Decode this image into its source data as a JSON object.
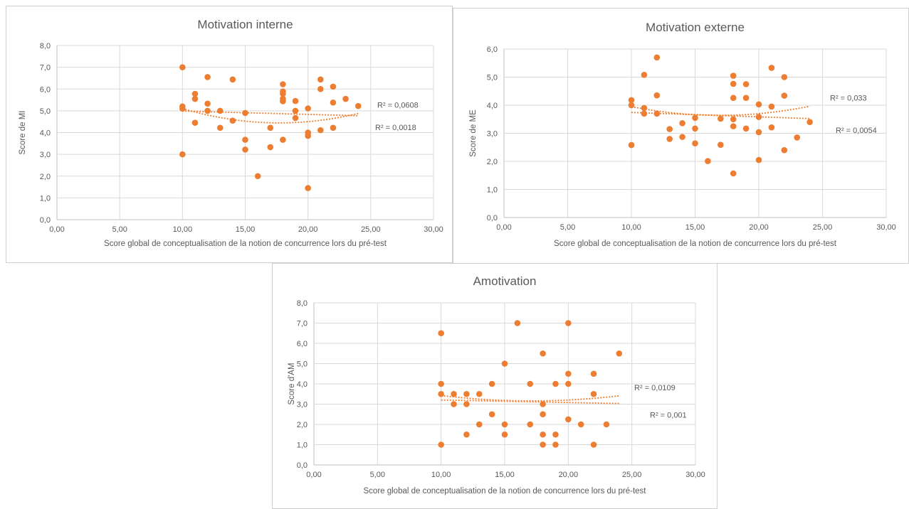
{
  "colors": {
    "point": "#ED7D31",
    "trend": "#ED7D31",
    "grid": "#d9d9d9",
    "axis": "#bfbfbf",
    "text": "#595959"
  },
  "chart_data": [
    {
      "type": "scatter",
      "title": "Motivation interne",
      "xlabel": "Score  global de conceptualisation de la notion de concurrence lors du pré-test",
      "ylabel": "Score de MI",
      "xlim": [
        0,
        30
      ],
      "ylim": [
        0,
        8
      ],
      "xticks": [
        "0,00",
        "5,00",
        "10,00",
        "15,00",
        "20,00",
        "25,00",
        "30,00"
      ],
      "yticks": [
        "0,0",
        "1,0",
        "2,0",
        "3,0",
        "4,0",
        "5,0",
        "6,0",
        "7,0",
        "8,0"
      ],
      "grid": true,
      "points": [
        [
          10,
          7.0
        ],
        [
          10,
          5.2
        ],
        [
          10,
          5.1
        ],
        [
          10,
          3.0
        ],
        [
          11,
          5.78
        ],
        [
          11,
          5.55
        ],
        [
          11,
          4.45
        ],
        [
          12,
          6.55
        ],
        [
          12,
          5.33
        ],
        [
          12,
          5.0
        ],
        [
          13,
          5.0
        ],
        [
          13,
          4.22
        ],
        [
          14,
          6.44
        ],
        [
          14,
          4.55
        ],
        [
          15,
          4.9
        ],
        [
          15,
          3.67
        ],
        [
          15,
          3.22
        ],
        [
          16,
          2.0
        ],
        [
          17,
          4.22
        ],
        [
          17,
          3.33
        ],
        [
          18,
          6.22
        ],
        [
          18,
          5.89
        ],
        [
          18,
          5.78
        ],
        [
          18,
          5.55
        ],
        [
          18,
          5.44
        ],
        [
          18,
          3.67
        ],
        [
          19,
          5.45
        ],
        [
          19,
          5.0
        ],
        [
          19,
          4.67
        ],
        [
          20,
          5.11
        ],
        [
          20,
          4.0
        ],
        [
          20,
          3.85
        ],
        [
          20,
          1.45
        ],
        [
          21,
          6.44
        ],
        [
          21,
          6.0
        ],
        [
          21,
          4.11
        ],
        [
          22,
          6.11
        ],
        [
          22,
          5.38
        ],
        [
          22,
          4.22
        ],
        [
          23,
          5.55
        ],
        [
          24,
          5.22
        ]
      ],
      "trendlines": [
        {
          "kind": "polynomial",
          "label": "R² = 0,0608",
          "xrange": [
            10,
            24
          ],
          "coefficients": [
            7.91,
            -0.391,
            0.01103
          ]
        },
        {
          "kind": "linear",
          "label": "R² = 0,0018",
          "xrange": [
            10,
            24
          ],
          "coefficients": [
            5.14,
            -0.0152
          ]
        }
      ]
    },
    {
      "type": "scatter",
      "title": "Motivation externe",
      "xlabel": "Score  global de conceptualisation de la notion de concurrence lors du pré-test",
      "ylabel": "Score de ME",
      "xlim": [
        0,
        30
      ],
      "ylim": [
        0,
        6
      ],
      "xticks": [
        "0,00",
        "5,00",
        "10,00",
        "15,00",
        "20,00",
        "25,00",
        "30,00"
      ],
      "yticks": [
        "0,0",
        "1,0",
        "2,0",
        "3,0",
        "4,0",
        "5,0",
        "6,0"
      ],
      "grid": true,
      "points": [
        [
          10,
          4.18
        ],
        [
          10,
          4.0
        ],
        [
          10,
          2.58
        ],
        [
          11,
          5.08
        ],
        [
          11,
          3.9
        ],
        [
          11,
          3.7
        ],
        [
          12,
          5.7
        ],
        [
          12,
          4.35
        ],
        [
          12,
          3.7
        ],
        [
          13,
          3.15
        ],
        [
          13,
          2.8
        ],
        [
          14,
          3.36
        ],
        [
          14,
          2.87
        ],
        [
          15,
          3.55
        ],
        [
          15,
          3.17
        ],
        [
          15,
          2.64
        ],
        [
          16,
          2.01
        ],
        [
          17,
          3.52
        ],
        [
          17,
          2.59
        ],
        [
          18,
          5.05
        ],
        [
          18,
          4.76
        ],
        [
          18,
          4.26
        ],
        [
          18,
          3.5
        ],
        [
          18,
          3.25
        ],
        [
          18,
          1.57
        ],
        [
          19,
          4.75
        ],
        [
          19,
          4.26
        ],
        [
          19,
          3.17
        ],
        [
          20,
          4.03
        ],
        [
          20,
          3.58
        ],
        [
          20,
          3.04
        ],
        [
          20,
          2.05
        ],
        [
          21,
          5.33
        ],
        [
          21,
          3.95
        ],
        [
          21,
          3.21
        ],
        [
          22,
          5.0
        ],
        [
          22,
          4.34
        ],
        [
          22,
          2.4
        ],
        [
          23,
          2.85
        ],
        [
          24,
          3.4
        ]
      ],
      "trendlines": [
        {
          "kind": "polynomial",
          "label": "R² = 0,033",
          "xrange": [
            10,
            24
          ],
          "coefficients": [
            5.5,
            -0.22,
            0.0065
          ]
        },
        {
          "kind": "linear",
          "label": "R² = 0,0054",
          "xrange": [
            10,
            24
          ],
          "coefficients": [
            3.9,
            -0.0157
          ]
        }
      ]
    },
    {
      "type": "scatter",
      "title": "Amotivation",
      "xlabel": "Score  global de conceptualisation de la notion de concurrence lors du pré-test",
      "ylabel": "Score d'AM",
      "xlim": [
        0,
        30
      ],
      "ylim": [
        0,
        8
      ],
      "xticks": [
        "0,00",
        "5,00",
        "10,00",
        "15,00",
        "20,00",
        "25,00",
        "30,00"
      ],
      "yticks": [
        "0,0",
        "1,0",
        "2,0",
        "3,0",
        "4,0",
        "5,0",
        "6,0",
        "7,0",
        "8,0"
      ],
      "grid": true,
      "points": [
        [
          10,
          6.5
        ],
        [
          10,
          4.0
        ],
        [
          10,
          3.5
        ],
        [
          10,
          1.0
        ],
        [
          11,
          3.5
        ],
        [
          11,
          3.0
        ],
        [
          12,
          3.5
        ],
        [
          12,
          3.0
        ],
        [
          12,
          1.5
        ],
        [
          13,
          3.5
        ],
        [
          13,
          2.0
        ],
        [
          14,
          4.0
        ],
        [
          14,
          2.5
        ],
        [
          15,
          5.0
        ],
        [
          15,
          2.0
        ],
        [
          15,
          1.5
        ],
        [
          16,
          7.0
        ],
        [
          17,
          4.0
        ],
        [
          17,
          2.0
        ],
        [
          18,
          5.5
        ],
        [
          18,
          3.0
        ],
        [
          18,
          2.5
        ],
        [
          18,
          1.5
        ],
        [
          18,
          1.0
        ],
        [
          19,
          4.0
        ],
        [
          19,
          1.5
        ],
        [
          19,
          1.0
        ],
        [
          20,
          7.0
        ],
        [
          20,
          4.5
        ],
        [
          20,
          4.0
        ],
        [
          20,
          2.25
        ],
        [
          21,
          2.0
        ],
        [
          22,
          4.5
        ],
        [
          22,
          3.5
        ],
        [
          22,
          1.0
        ],
        [
          23,
          2.0
        ],
        [
          24,
          5.5
        ]
      ],
      "trendlines": [
        {
          "kind": "polynomial",
          "label": "R² = 0,0109",
          "xrange": [
            10,
            24
          ],
          "coefficients": [
            4.7,
            -0.18,
            0.00526
          ]
        },
        {
          "kind": "linear",
          "label": "R² = 0,001",
          "xrange": [
            10,
            24
          ],
          "coefficients": [
            3.33,
            -0.0125
          ]
        }
      ]
    }
  ]
}
